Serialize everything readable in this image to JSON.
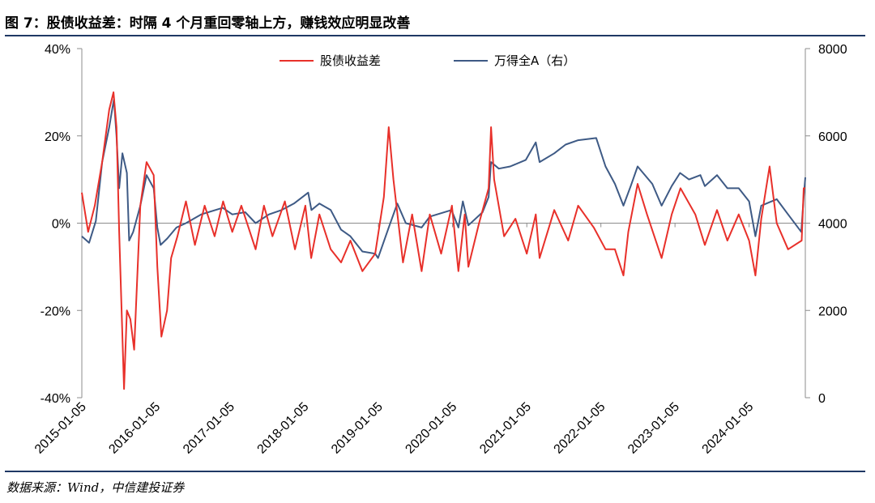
{
  "figure": {
    "title": "图 7：股债收益差：时隔 4 个月重回零轴上方，赚钱效应明显改善",
    "source": "数据来源：Wind，中信建投证券"
  },
  "chart_data": {
    "type": "line",
    "xlabel": "",
    "ylabel_left": "",
    "ylabel_right": "",
    "x_range": [
      "2015-01-05",
      "2024-10-08"
    ],
    "x_ticks": [
      "2015-01-05",
      "2016-01-05",
      "2017-01-05",
      "2018-01-05",
      "2019-01-05",
      "2020-01-05",
      "2021-01-05",
      "2022-01-05",
      "2023-01-05",
      "2024-01-05"
    ],
    "y_left": {
      "min": -40,
      "max": 40,
      "ticks": [
        -40,
        -20,
        0,
        20,
        40
      ],
      "tick_labels": [
        "-40%",
        "-20%",
        "0%",
        "20%",
        "40%"
      ]
    },
    "y_right": {
      "min": 0,
      "max": 8000,
      "ticks": [
        0,
        2000,
        4000,
        6000,
        8000
      ],
      "tick_labels": [
        "0",
        "2000",
        "4000",
        "6000",
        "8000"
      ]
    },
    "grid": false,
    "legend_position": "top-center",
    "series": [
      {
        "name": "股债收益差",
        "axis": "left",
        "color": "#e8302a",
        "points": [
          [
            "2015-01-05",
            7
          ],
          [
            "2015-02-05",
            -2
          ],
          [
            "2015-03-10",
            4
          ],
          [
            "2015-04-15",
            14
          ],
          [
            "2015-05-20",
            26
          ],
          [
            "2015-06-10",
            30
          ],
          [
            "2015-06-25",
            22
          ],
          [
            "2015-07-08",
            -2
          ],
          [
            "2015-07-20",
            -20
          ],
          [
            "2015-08-01",
            -38
          ],
          [
            "2015-08-15",
            -20
          ],
          [
            "2015-09-01",
            -22
          ],
          [
            "2015-09-20",
            -29
          ],
          [
            "2015-10-20",
            4
          ],
          [
            "2015-11-20",
            14
          ],
          [
            "2015-12-25",
            11
          ],
          [
            "2016-01-12",
            -10
          ],
          [
            "2016-02-01",
            -26
          ],
          [
            "2016-02-29",
            -20
          ],
          [
            "2016-03-20",
            -8
          ],
          [
            "2016-04-20",
            -3
          ],
          [
            "2016-06-01",
            5
          ],
          [
            "2016-07-15",
            -5
          ],
          [
            "2016-09-01",
            4
          ],
          [
            "2016-10-20",
            -3
          ],
          [
            "2016-12-01",
            5
          ],
          [
            "2017-01-15",
            -2
          ],
          [
            "2017-03-01",
            4
          ],
          [
            "2017-05-10",
            -6
          ],
          [
            "2017-06-20",
            4
          ],
          [
            "2017-08-01",
            -3
          ],
          [
            "2017-10-01",
            5
          ],
          [
            "2017-11-20",
            -6
          ],
          [
            "2018-01-10",
            4
          ],
          [
            "2018-02-08",
            -8
          ],
          [
            "2018-03-20",
            2
          ],
          [
            "2018-05-15",
            -6
          ],
          [
            "2018-07-05",
            -9
          ],
          [
            "2018-08-20",
            -4
          ],
          [
            "2018-10-18",
            -11
          ],
          [
            "2018-12-20",
            -7
          ],
          [
            "2019-02-01",
            6
          ],
          [
            "2019-02-25",
            22
          ],
          [
            "2019-03-20",
            10
          ],
          [
            "2019-05-06",
            -9
          ],
          [
            "2019-06-20",
            2
          ],
          [
            "2019-08-06",
            -11
          ],
          [
            "2019-09-15",
            2
          ],
          [
            "2019-11-10",
            -7
          ],
          [
            "2020-01-02",
            4
          ],
          [
            "2020-02-03",
            -11
          ],
          [
            "2020-03-05",
            2
          ],
          [
            "2020-03-23",
            -10
          ],
          [
            "2020-05-15",
            0
          ],
          [
            "2020-07-01",
            8
          ],
          [
            "2020-07-13",
            22
          ],
          [
            "2020-07-28",
            10
          ],
          [
            "2020-09-15",
            -3
          ],
          [
            "2020-11-10",
            1
          ],
          [
            "2021-01-05",
            -7
          ],
          [
            "2021-02-18",
            2
          ],
          [
            "2021-03-09",
            -8
          ],
          [
            "2021-05-20",
            3
          ],
          [
            "2021-07-28",
            -4
          ],
          [
            "2021-09-15",
            4
          ],
          [
            "2021-12-01",
            -1
          ],
          [
            "2022-01-28",
            -6
          ],
          [
            "2022-03-15",
            -6
          ],
          [
            "2022-04-26",
            -12
          ],
          [
            "2022-05-20",
            -2
          ],
          [
            "2022-07-05",
            9
          ],
          [
            "2022-08-20",
            2
          ],
          [
            "2022-10-31",
            -8
          ],
          [
            "2022-12-20",
            2
          ],
          [
            "2023-02-01",
            8
          ],
          [
            "2023-04-15",
            2
          ],
          [
            "2023-06-01",
            -5
          ],
          [
            "2023-07-31",
            3
          ],
          [
            "2023-09-20",
            -4
          ],
          [
            "2023-11-15",
            2
          ],
          [
            "2024-01-05",
            -4
          ],
          [
            "2024-02-05",
            -12
          ],
          [
            "2024-03-05",
            1
          ],
          [
            "2024-04-15",
            13
          ],
          [
            "2024-05-20",
            0
          ],
          [
            "2024-07-15",
            -6
          ],
          [
            "2024-09-20",
            -4
          ],
          [
            "2024-09-30",
            8
          ],
          [
            "2024-10-08",
            8
          ]
        ]
      },
      {
        "name": "万得全A（右）",
        "axis": "right",
        "color": "#3e5a85",
        "points": [
          [
            "2015-01-05",
            3700
          ],
          [
            "2015-02-10",
            3550
          ],
          [
            "2015-03-15",
            4050
          ],
          [
            "2015-04-15",
            5400
          ],
          [
            "2015-05-20",
            6200
          ],
          [
            "2015-06-12",
            6840
          ],
          [
            "2015-06-25",
            6000
          ],
          [
            "2015-07-08",
            4800
          ],
          [
            "2015-07-24",
            5600
          ],
          [
            "2015-08-15",
            5150
          ],
          [
            "2015-08-26",
            3600
          ],
          [
            "2015-09-15",
            3800
          ],
          [
            "2015-10-20",
            4400
          ],
          [
            "2015-11-20",
            5100
          ],
          [
            "2015-12-25",
            4800
          ],
          [
            "2016-01-12",
            3900
          ],
          [
            "2016-01-28",
            3500
          ],
          [
            "2016-03-01",
            3650
          ],
          [
            "2016-04-15",
            3900
          ],
          [
            "2016-06-01",
            4000
          ],
          [
            "2016-08-15",
            4200
          ],
          [
            "2016-11-29",
            4350
          ],
          [
            "2017-01-15",
            4200
          ],
          [
            "2017-03-20",
            4250
          ],
          [
            "2017-05-10",
            4000
          ],
          [
            "2017-07-15",
            4200
          ],
          [
            "2017-09-15",
            4300
          ],
          [
            "2017-11-15",
            4450
          ],
          [
            "2018-01-24",
            4700
          ],
          [
            "2018-02-09",
            4300
          ],
          [
            "2018-03-20",
            4450
          ],
          [
            "2018-05-15",
            4300
          ],
          [
            "2018-07-05",
            3850
          ],
          [
            "2018-08-20",
            3700
          ],
          [
            "2018-10-18",
            3350
          ],
          [
            "2018-12-20",
            3300
          ],
          [
            "2019-01-03",
            3200
          ],
          [
            "2019-02-25",
            3900
          ],
          [
            "2019-04-08",
            4450
          ],
          [
            "2019-05-20",
            4000
          ],
          [
            "2019-08-06",
            3900
          ],
          [
            "2019-09-15",
            4150
          ],
          [
            "2019-12-31",
            4300
          ],
          [
            "2020-02-03",
            3900
          ],
          [
            "2020-02-25",
            4500
          ],
          [
            "2020-03-23",
            3950
          ],
          [
            "2020-06-01",
            4250
          ],
          [
            "2020-07-01",
            4600
          ],
          [
            "2020-07-13",
            5400
          ],
          [
            "2020-08-20",
            5250
          ],
          [
            "2020-10-15",
            5300
          ],
          [
            "2020-12-31",
            5450
          ],
          [
            "2021-02-18",
            5850
          ],
          [
            "2021-03-09",
            5400
          ],
          [
            "2021-05-20",
            5600
          ],
          [
            "2021-07-15",
            5800
          ],
          [
            "2021-09-15",
            5900
          ],
          [
            "2021-12-13",
            5950
          ],
          [
            "2022-01-28",
            5300
          ],
          [
            "2022-03-15",
            4900
          ],
          [
            "2022-04-26",
            4400
          ],
          [
            "2022-06-01",
            4850
          ],
          [
            "2022-07-05",
            5300
          ],
          [
            "2022-09-15",
            4900
          ],
          [
            "2022-10-31",
            4400
          ],
          [
            "2022-12-20",
            4850
          ],
          [
            "2023-01-30",
            5150
          ],
          [
            "2023-03-15",
            5000
          ],
          [
            "2023-05-10",
            5100
          ],
          [
            "2023-06-01",
            4850
          ],
          [
            "2023-07-31",
            5100
          ],
          [
            "2023-09-20",
            4800
          ],
          [
            "2023-11-15",
            4800
          ],
          [
            "2024-01-05",
            4500
          ],
          [
            "2024-02-05",
            3700
          ],
          [
            "2024-03-05",
            4400
          ],
          [
            "2024-05-20",
            4550
          ],
          [
            "2024-07-15",
            4200
          ],
          [
            "2024-09-18",
            3800
          ],
          [
            "2024-09-30",
            4600
          ],
          [
            "2024-10-08",
            5050
          ]
        ]
      }
    ]
  }
}
